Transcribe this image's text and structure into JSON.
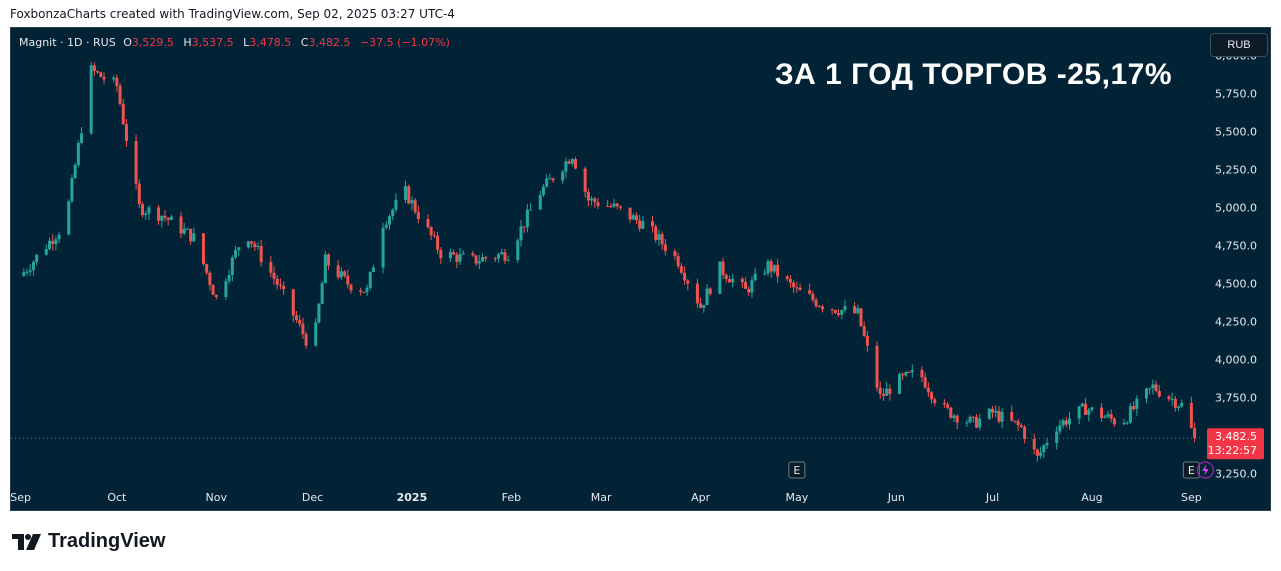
{
  "header": {
    "attribution": "FoxbonzaCharts created with TradingView.com, Sep 02, 2025 03:27 UTC-4"
  },
  "legend": {
    "symbol": "Magnit · 1D · RUS",
    "open_label": "O",
    "open": "3,529.5",
    "high_label": "H",
    "high": "3,537.5",
    "low_label": "L",
    "low": "3,478.5",
    "close_label": "C",
    "close": "3,482.5",
    "change": "−37.5 (−1.07%)"
  },
  "currency": "RUB",
  "headline": "ЗА 1 ГОД ТОРГОВ -25,17%",
  "last_price": {
    "price": "3,482.5",
    "countdown": "13:22:57"
  },
  "event_markers": [
    {
      "label": "E",
      "month": "May"
    },
    {
      "label": "E",
      "month": "Sep"
    }
  ],
  "footer": {
    "brand": "TradingView"
  },
  "colors": {
    "background": "#012335",
    "up": "#26a69a",
    "down": "#ef5350",
    "axis_text": "#e6e9ef",
    "last_price_badge": "#f23645"
  },
  "chart_data": {
    "type": "candlestick",
    "title": "ЗА 1 ГОД ТОРГОВ -25,17%",
    "xlabel": "",
    "ylabel": "",
    "ylim": [
      3175,
      6180
    ],
    "y_ticks": [
      "6,000.0",
      "5,750.0",
      "5,500.0",
      "5,250.0",
      "5,000.0",
      "4,750.0",
      "4,500.0",
      "4,250.0",
      "4,000.0",
      "3,750.0",
      "3,250.0"
    ],
    "x_ticks": [
      "Sep",
      "Oct",
      "Nov",
      "Dec",
      "2025",
      "Feb",
      "Mar",
      "Apr",
      "May",
      "Jun",
      "Jul",
      "Aug",
      "Sep"
    ],
    "grid": false,
    "series": [
      {
        "name": "Magnit",
        "dates": [
          "2024-09-01",
          "2024-09-15",
          "2024-09-23",
          "2024-10-01",
          "2024-10-08",
          "2024-10-15",
          "2024-10-25",
          "2024-11-01",
          "2024-11-10",
          "2024-11-20",
          "2024-12-01",
          "2024-12-05",
          "2024-12-12",
          "2024-12-18",
          "2024-12-23",
          "2024-12-30",
          "2025-01-10",
          "2025-01-20",
          "2025-01-31",
          "2025-02-10",
          "2025-02-20",
          "2025-02-25",
          "2025-03-05",
          "2025-03-15",
          "2025-03-25",
          "2025-04-01",
          "2025-04-07",
          "2025-04-15",
          "2025-04-22",
          "2025-05-01",
          "2025-05-10",
          "2025-05-20",
          "2025-05-27",
          "2025-06-01",
          "2025-06-08",
          "2025-06-15",
          "2025-06-25",
          "2025-07-01",
          "2025-07-10",
          "2025-07-15",
          "2025-07-20",
          "2025-07-30",
          "2025-08-10",
          "2025-08-20",
          "2025-08-29",
          "2025-09-02"
        ],
        "close": [
          4550,
          4900,
          5900,
          5800,
          5000,
          4950,
          4800,
          4400,
          4850,
          4500,
          4050,
          4650,
          4500,
          4450,
          4900,
          5100,
          4700,
          4650,
          4700,
          5100,
          5350,
          5050,
          5000,
          4880,
          4650,
          4350,
          4600,
          4450,
          4620,
          4450,
          4350,
          4300,
          3750,
          3850,
          3920,
          3680,
          3580,
          3650,
          3550,
          3350,
          3550,
          3680,
          3580,
          3820,
          3700,
          3482.5
        ]
      }
    ]
  }
}
